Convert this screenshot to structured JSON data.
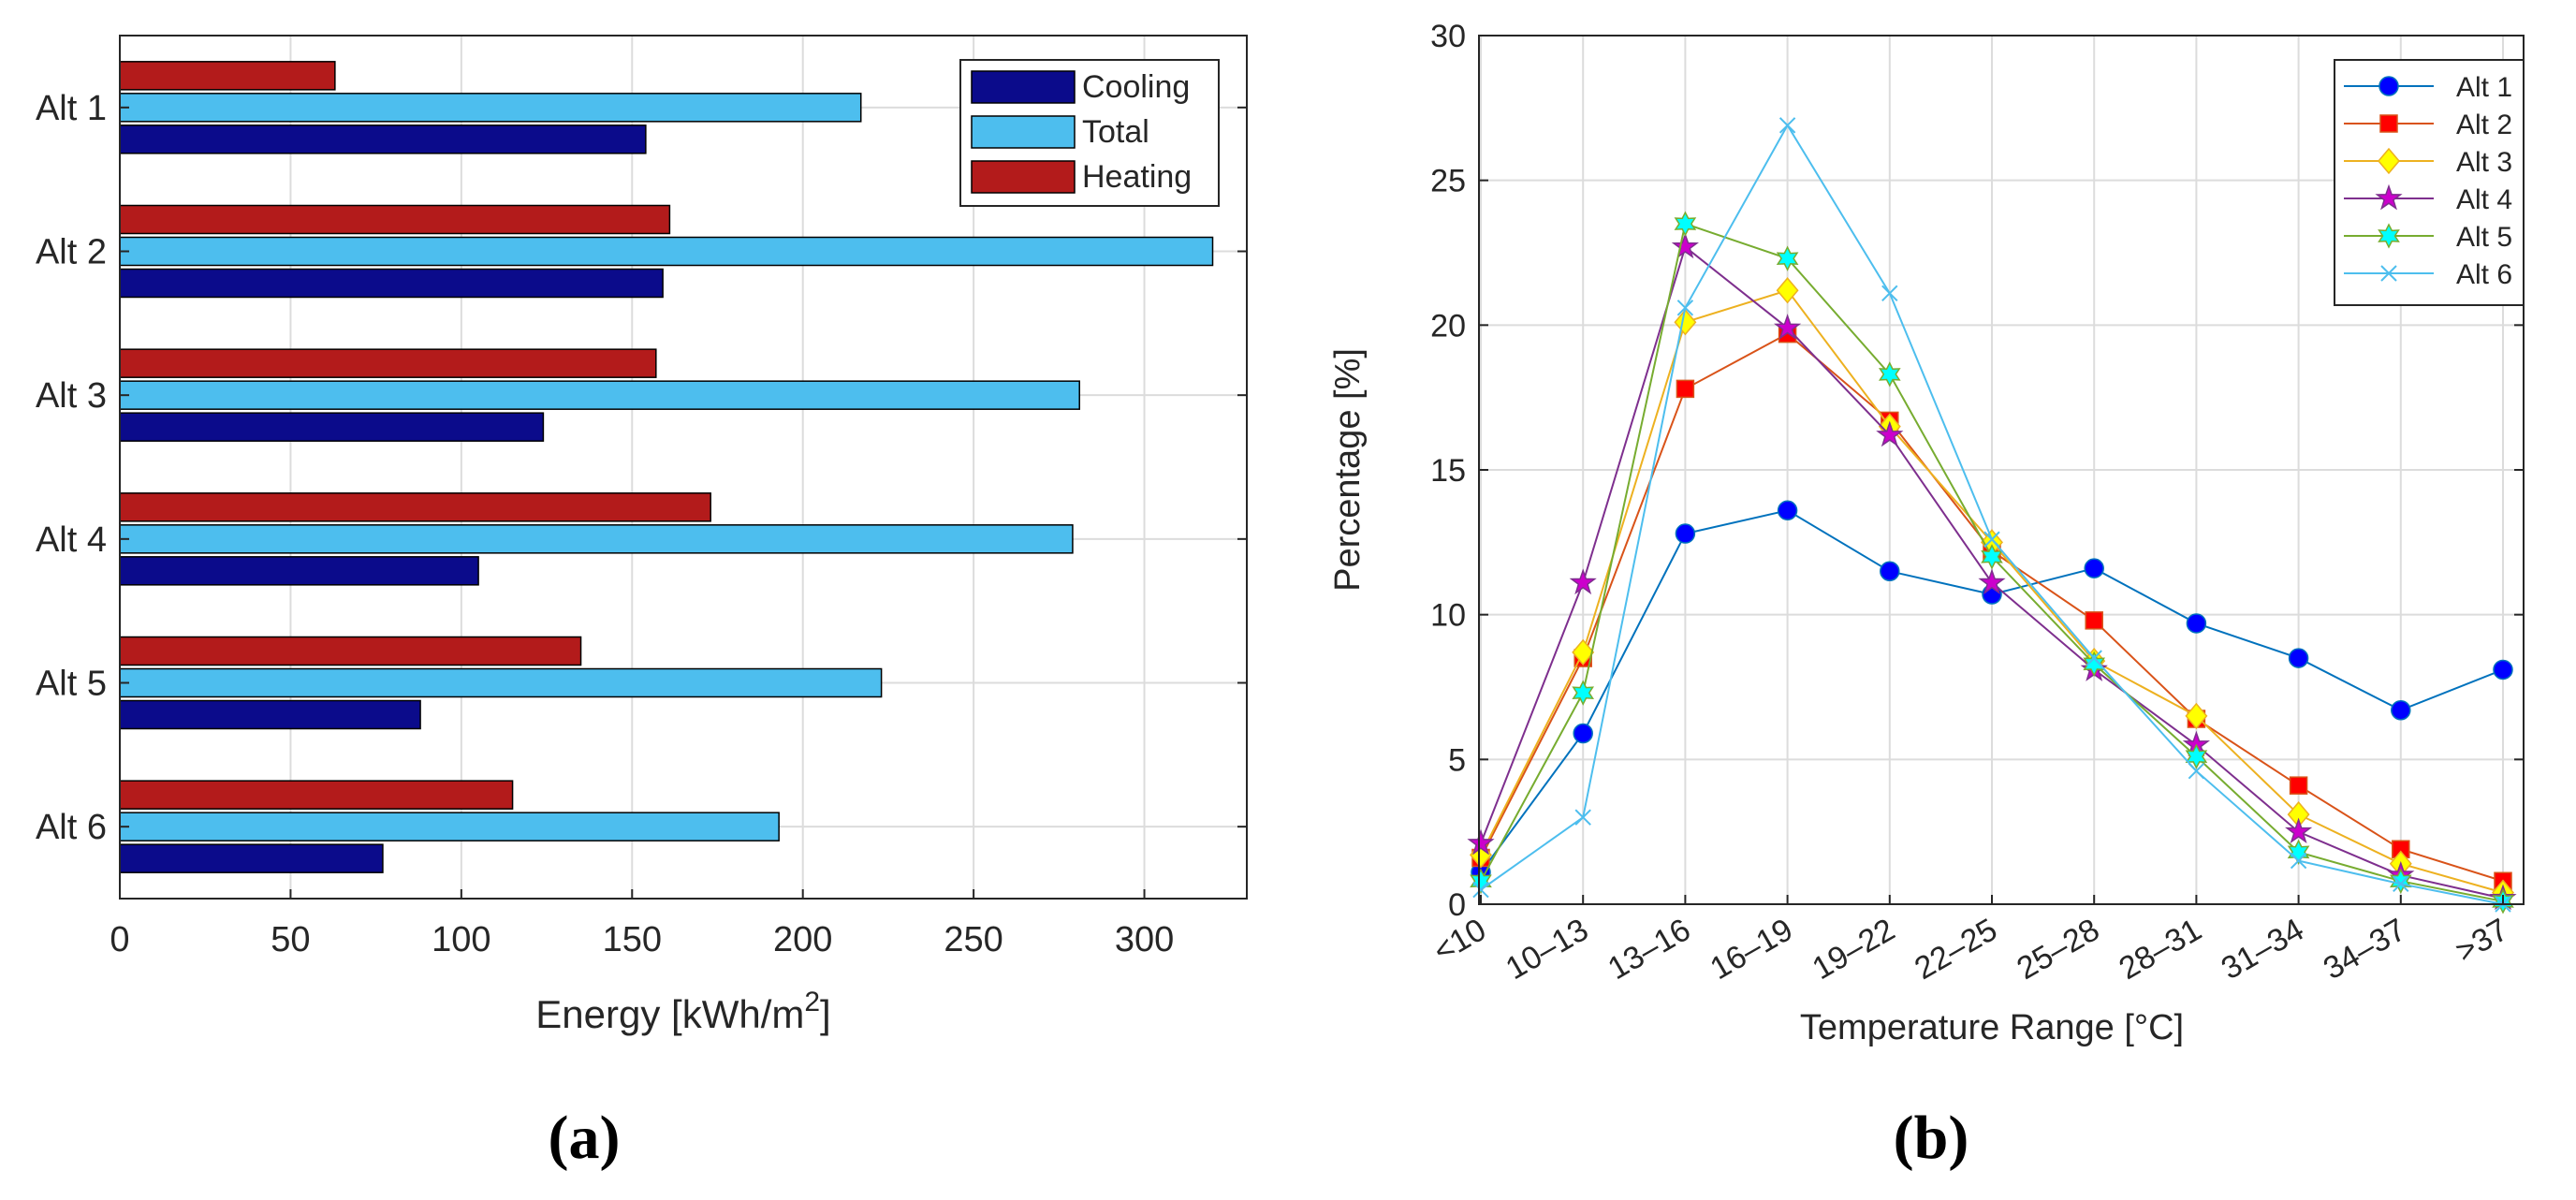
{
  "chart_data": [
    {
      "type": "bar",
      "orientation": "horizontal",
      "panel_label": "(a)",
      "categories": [
        "Alt 1",
        "Alt 2",
        "Alt 3",
        "Alt 4",
        "Alt 5",
        "Alt 6"
      ],
      "series": [
        {
          "name": "Heating",
          "color": "#b31b1b",
          "values": [
            63,
            161,
            157,
            173,
            135,
            115
          ]
        },
        {
          "name": "Total",
          "color": "#4dbeee",
          "values": [
            217,
            320,
            281,
            279,
            223,
            193
          ]
        },
        {
          "name": "Cooling",
          "color": "#0b0b8b",
          "values": [
            154,
            159,
            124,
            105,
            88,
            77
          ]
        }
      ],
      "legend": {
        "entries": [
          "Cooling",
          "Total",
          "Heating"
        ],
        "placement": "top-right"
      },
      "xlabel_prefix": "Energy [kWh/m",
      "xlabel_sup": "2",
      "xlabel_suffix": "]",
      "xlim": [
        0,
        330
      ],
      "xticks": [
        "0",
        "50",
        "100",
        "150",
        "200",
        "250",
        "300"
      ],
      "grid": true
    },
    {
      "type": "line",
      "panel_label": "(b)",
      "categories": [
        "<10",
        "10–13",
        "13–16",
        "16–19",
        "19–22",
        "22–25",
        "25–28",
        "28–31",
        "31–34",
        "34–37",
        ">37"
      ],
      "series": [
        {
          "name": "Alt 1",
          "color": "#0072bd",
          "marker": "circle",
          "markerFill": "#0000ff",
          "values": [
            1.1,
            5.9,
            12.8,
            13.6,
            11.5,
            10.7,
            11.6,
            9.7,
            8.5,
            6.7,
            8.1
          ]
        },
        {
          "name": "Alt 2",
          "color": "#d95319",
          "marker": "square",
          "markerFill": "#ff0000",
          "values": [
            1.6,
            8.5,
            17.8,
            19.7,
            16.7,
            12.2,
            9.8,
            6.4,
            4.1,
            1.9,
            0.8
          ]
        },
        {
          "name": "Alt 3",
          "color": "#edb120",
          "marker": "diamond",
          "markerFill": "#ffff00",
          "values": [
            1.7,
            8.7,
            20.1,
            21.2,
            16.5,
            12.5,
            8.4,
            6.5,
            3.1,
            1.4,
            0.4
          ]
        },
        {
          "name": "Alt 4",
          "color": "#7e2f8e",
          "marker": "pentagram",
          "markerFill": "#cc00cc",
          "values": [
            2.1,
            11.1,
            22.7,
            19.9,
            16.2,
            11.1,
            8.1,
            5.5,
            2.5,
            1.0,
            0.2
          ]
        },
        {
          "name": "Alt 5",
          "color": "#77ac30",
          "marker": "hexagram",
          "markerFill": "#00ffff",
          "values": [
            0.8,
            7.3,
            23.5,
            22.3,
            18.3,
            12.0,
            8.3,
            5.1,
            1.8,
            0.8,
            0.1
          ]
        },
        {
          "name": "Alt 6",
          "color": "#4dbeee",
          "marker": "x",
          "markerFill": "none",
          "values": [
            0.5,
            3.0,
            20.6,
            26.9,
            21.1,
            12.6,
            8.5,
            4.6,
            1.5,
            0.7,
            0.0
          ]
        }
      ],
      "xlabel": "Temperature Range [°C]",
      "ylabel": "Percentage [%]",
      "ylim": [
        0,
        30
      ],
      "yticks": [
        "0",
        "5",
        "10",
        "15",
        "20",
        "25",
        "30"
      ],
      "legend": {
        "placement": "top-right"
      },
      "grid": true
    }
  ]
}
